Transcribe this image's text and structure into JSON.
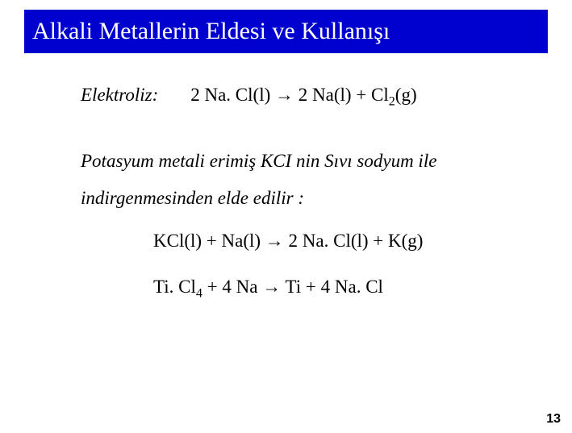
{
  "title": "Alkali Metallerin Eldesi ve Kullanışı",
  "electrolysis": {
    "label": "Elektroliz:",
    "lhs_coeff": "2 ",
    "lhs_sp": "Na. Cl(l)",
    "arrow": " → ",
    "rhs1_coeff": "2 ",
    "rhs1_sp": "Na(l)",
    "plus": " + ",
    "rhs2_sp": "Cl",
    "rhs2_sub": "2",
    "rhs2_tail": "(g)"
  },
  "paragraph": "Potasyum metali erimiş KCI nin Sıvı sodyum ile indirgenmesinden elde edilir :",
  "eq2": {
    "a": "KCl(l) + Na(l) → 2 Na. Cl(l) + K(g)"
  },
  "eq3": {
    "p1": "Ti. Cl",
    "sub1": "4",
    "p2": " + 4 Na → Ti + 4 Na. Cl"
  },
  "page_number": "13",
  "colors": {
    "title_bg": "#0000ce",
    "title_fg": "#ffffff",
    "body_bg": "#ffffff",
    "text": "#000000"
  },
  "fonts": {
    "title_size_pt": 30,
    "body_size_pt": 23,
    "pagenum_size_pt": 16
  }
}
